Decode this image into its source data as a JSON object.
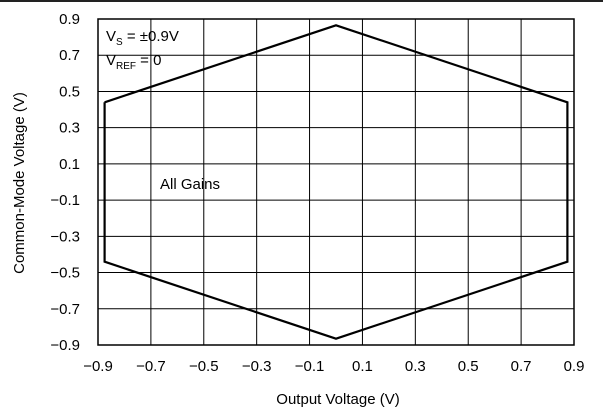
{
  "chart_data": {
    "type": "line",
    "title": "",
    "xlabel": "Output Voltage (V)",
    "ylabel": "Common-Mode Voltage (V)",
    "xlim": [
      -0.9,
      0.9
    ],
    "ylim": [
      -0.9,
      0.9
    ],
    "x_ticks": [
      "−0.9",
      "−0.7",
      "−0.5",
      "−0.3",
      "−0.1",
      "0.1",
      "0.3",
      "0.5",
      "0.7",
      "0.9"
    ],
    "y_ticks": [
      "0.9",
      "0.7",
      "0.5",
      "0.3",
      "0.1",
      "−0.1",
      "−0.3",
      "−0.5",
      "−0.7",
      "−0.9"
    ],
    "grid": true,
    "series": [
      {
        "x": [
          -0.875,
          0.0,
          0.875,
          0.875,
          0.0,
          -0.875,
          -0.875
        ],
        "y": [
          0.44,
          0.865,
          0.44,
          -0.44,
          -0.865,
          -0.44,
          0.44
        ]
      }
    ],
    "annotations": {
      "vs_main": "V",
      "vs_sub": "S",
      "vs_rest": " = ±0.9V",
      "vref_main": "V",
      "vref_sub": "REF",
      "vref_rest": " = 0",
      "gains": "All Gains"
    }
  }
}
